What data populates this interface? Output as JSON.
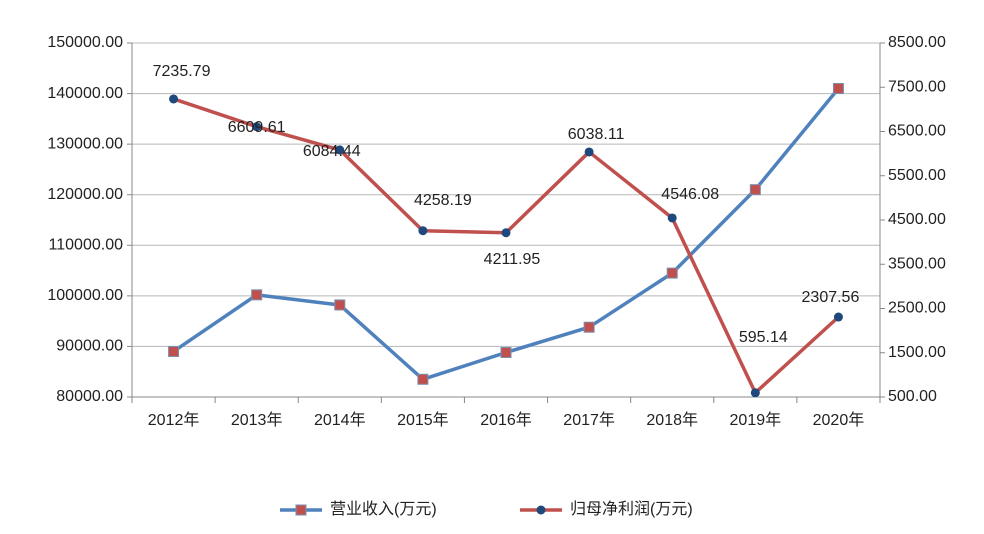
{
  "chart_data": {
    "type": "line",
    "categories": [
      "2012年",
      "2013年",
      "2014年",
      "2015年",
      "2016年",
      "2017年",
      "2018年",
      "2019年",
      "2020年"
    ],
    "series": [
      {
        "name": "营业收入(万元)",
        "color": "#4f81bd",
        "marker": "square",
        "marker_color": "#c0504d",
        "values": [
          89000,
          100200,
          98200,
          83500,
          88800,
          93800,
          104500,
          121000,
          141000
        ]
      },
      {
        "name": "归母净利润(万元)",
        "color": "#c0504d",
        "marker": "circle",
        "marker_color": "#1f497d",
        "axis": "y2",
        "values": [
          7235.79,
          6609.61,
          6084.44,
          4258.19,
          4211.95,
          6038.11,
          4546.08,
          595.14,
          2307.56
        ]
      }
    ],
    "ylim": [
      80000,
      150000
    ],
    "yticks": [
      {
        "value": 80000,
        "label": "80000.00"
      },
      {
        "value": 90000,
        "label": "90000.00"
      },
      {
        "value": 100000,
        "label": "100000.00"
      },
      {
        "value": 110000,
        "label": "110000.00"
      },
      {
        "value": 120000,
        "label": "120000.00"
      },
      {
        "value": 130000,
        "label": "130000.00"
      },
      {
        "value": 140000,
        "label": "140000.00"
      },
      {
        "value": 150000,
        "label": "150000.00"
      }
    ],
    "y2lim": [
      500,
      8500
    ],
    "y2ticks": [
      {
        "value": 500,
        "label": "500.00"
      },
      {
        "value": 1500,
        "label": "1500.00"
      },
      {
        "value": 2500,
        "label": "2500.00"
      },
      {
        "value": 3500,
        "label": "3500.00"
      },
      {
        "value": 4500,
        "label": "4500.00"
      },
      {
        "value": 5500,
        "label": "5500.00"
      },
      {
        "value": 6500,
        "label": "6500.00"
      },
      {
        "value": 7500,
        "label": "7500.00"
      },
      {
        "value": 8500,
        "label": "8500.00"
      }
    ],
    "grid": true,
    "legend": "bottom"
  }
}
